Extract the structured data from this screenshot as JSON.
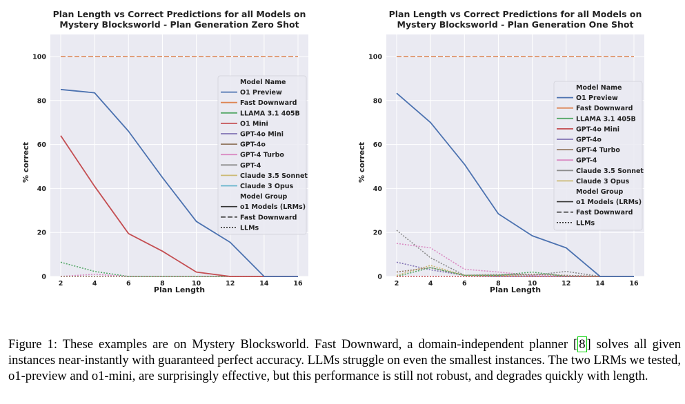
{
  "chart_data": [
    {
      "type": "line",
      "title_lines": [
        "Plan Length vs Correct Predictions for all Models on",
        "Mystery Blocksworld - Plan Generation Zero Shot"
      ],
      "xlabel": "Plan Length",
      "ylabel": "% correct",
      "x_ticks": [
        2,
        4,
        6,
        8,
        10,
        12,
        14,
        16
      ],
      "y_ticks": [
        0,
        20,
        40,
        60,
        80,
        100
      ],
      "xlim": [
        2,
        16
      ],
      "ylim": [
        0,
        105
      ],
      "grid": true,
      "legend_position": "right",
      "legend": {
        "model_header": "Model Name",
        "models": [
          {
            "name": "O1 Preview",
            "color": "#4c72b0"
          },
          {
            "name": "Fast Downward",
            "color": "#dd8452"
          },
          {
            "name": "LLAMA 3.1 405B",
            "color": "#55a868"
          },
          {
            "name": "O1 Mini",
            "color": "#c44e52"
          },
          {
            "name": "GPT-4o Mini",
            "color": "#8172b3"
          },
          {
            "name": "GPT-4o",
            "color": "#937860"
          },
          {
            "name": "GPT-4 Turbo",
            "color": "#da8bc3"
          },
          {
            "name": "GPT-4",
            "color": "#8c8c8c"
          },
          {
            "name": "Claude 3.5 Sonnet",
            "color": "#ccb974"
          },
          {
            "name": "Claude 3 Opus",
            "color": "#64b5cd"
          }
        ],
        "group_header": "Model Group",
        "groups": [
          {
            "name": "o1 Models (LRMs)",
            "dash": "solid"
          },
          {
            "name": "Fast Downward",
            "dash": "dashed"
          },
          {
            "name": "LLMs",
            "dash": "dotted"
          }
        ]
      },
      "series": [
        {
          "model": "Fast Downward",
          "color": "#dd8452",
          "dash": "dashed",
          "x": [
            2,
            16
          ],
          "y": [
            100,
            100
          ]
        },
        {
          "model": "LLAMA 3.1 405B",
          "color": "#55a868",
          "dash": "dotted",
          "x": [
            2,
            4,
            6,
            8,
            10,
            12,
            14,
            16
          ],
          "y": [
            6.5,
            2.3,
            0,
            0,
            0,
            0,
            0,
            0
          ]
        },
        {
          "model": "GPT-4 Turbo",
          "color": "#da8bc3",
          "dash": "dotted",
          "x": [
            2,
            4,
            6,
            8,
            10,
            12,
            14,
            16
          ],
          "y": [
            0,
            1,
            0,
            0,
            0,
            0,
            0,
            0
          ]
        },
        {
          "model": "GPT-4o",
          "color": "#937860",
          "dash": "dotted",
          "x": [
            2,
            4,
            6,
            8,
            10,
            12,
            14,
            16
          ],
          "y": [
            0,
            0,
            0,
            0,
            0,
            0,
            0,
            0
          ]
        },
        {
          "model": "O1 Mini",
          "color": "#c44e52",
          "dash": "solid",
          "x": [
            2,
            4,
            6,
            8,
            10,
            12,
            14,
            16
          ],
          "y": [
            64,
            41,
            19.5,
            11.5,
            2,
            0,
            0,
            0
          ]
        },
        {
          "model": "O1 Preview",
          "color": "#4c72b0",
          "dash": "solid",
          "x": [
            2,
            4,
            6,
            8,
            10,
            12,
            14,
            16
          ],
          "y": [
            85,
            83.5,
            66,
            45,
            25,
            15.5,
            0,
            0
          ]
        }
      ]
    },
    {
      "type": "line",
      "title_lines": [
        "Plan Length vs Correct Predictions for all Models on",
        "Mystery Blocksworld - Plan Generation One Shot"
      ],
      "xlabel": "Plan Length",
      "ylabel": "% correct",
      "x_ticks": [
        2,
        4,
        6,
        8,
        10,
        12,
        14,
        16
      ],
      "y_ticks": [
        0,
        20,
        40,
        60,
        80,
        100
      ],
      "xlim": [
        2,
        16
      ],
      "ylim": [
        0,
        105
      ],
      "grid": true,
      "legend_position": "right",
      "legend": {
        "model_header": "Model Name",
        "models": [
          {
            "name": "O1 Preview",
            "color": "#4c72b0"
          },
          {
            "name": "Fast Downward",
            "color": "#dd8452"
          },
          {
            "name": "LLAMA 3.1 405B",
            "color": "#55a868"
          },
          {
            "name": "GPT-4o Mini",
            "color": "#c44e52"
          },
          {
            "name": "GPT-4o",
            "color": "#8172b3"
          },
          {
            "name": "GPT-4 Turbo",
            "color": "#937860"
          },
          {
            "name": "GPT-4",
            "color": "#da8bc3"
          },
          {
            "name": "Claude 3.5 Sonnet",
            "color": "#8c8c8c"
          },
          {
            "name": "Claude 3 Opus",
            "color": "#ccb974"
          }
        ],
        "group_header": "Model Group",
        "groups": [
          {
            "name": "o1 Models (LRMs)",
            "dash": "solid"
          },
          {
            "name": "Fast Downward",
            "dash": "dashed"
          },
          {
            "name": "LLMs",
            "dash": "dotted"
          }
        ]
      },
      "series": [
        {
          "model": "Fast Downward",
          "color": "#dd8452",
          "dash": "dashed",
          "x": [
            2,
            16
          ],
          "y": [
            100,
            100
          ]
        },
        {
          "model": "Claude 3.5 Sonnet",
          "color": "#8c8c8c",
          "dash": "dotted",
          "x": [
            2,
            4,
            6,
            8,
            10,
            12,
            14,
            16
          ],
          "y": [
            21,
            8.5,
            0.5,
            1,
            0.5,
            2.3,
            0,
            0
          ]
        },
        {
          "model": "GPT-4",
          "color": "#da8bc3",
          "dash": "dotted",
          "x": [
            2,
            4,
            6,
            8,
            10,
            12,
            14,
            16
          ],
          "y": [
            15,
            13,
            3.3,
            2,
            0.5,
            0,
            0,
            0
          ]
        },
        {
          "model": "GPT-4o",
          "color": "#8172b3",
          "dash": "dotted",
          "x": [
            2,
            4,
            6,
            8,
            10,
            12,
            14,
            16
          ],
          "y": [
            6.5,
            3,
            0.5,
            0,
            0,
            0,
            0,
            0
          ]
        },
        {
          "model": "Claude 3 Opus",
          "color": "#ccb974",
          "dash": "dotted",
          "x": [
            2,
            4,
            6,
            8,
            10,
            12,
            14,
            16
          ],
          "y": [
            0.5,
            5,
            0.5,
            0.5,
            0,
            0,
            0,
            0
          ]
        },
        {
          "model": "GPT-4 Turbo",
          "color": "#937860",
          "dash": "dotted",
          "x": [
            2,
            4,
            6,
            8,
            10,
            12,
            14,
            16
          ],
          "y": [
            2,
            4,
            0.5,
            0.5,
            1,
            0.5,
            0,
            0
          ]
        },
        {
          "model": "LLAMA 3.1 405B",
          "color": "#55a868",
          "dash": "dotted",
          "x": [
            2,
            4,
            6,
            8,
            10,
            12,
            14,
            16
          ],
          "y": [
            0,
            4,
            0.5,
            0.5,
            2,
            0,
            0,
            0
          ]
        },
        {
          "model": "GPT-4o Mini",
          "color": "#c44e52",
          "dash": "dotted",
          "x": [
            2,
            4,
            6,
            8,
            10,
            12,
            14,
            16
          ],
          "y": [
            0,
            0,
            0,
            0,
            0,
            0,
            0,
            0
          ]
        },
        {
          "model": "O1 Preview",
          "color": "#4c72b0",
          "dash": "solid",
          "x": [
            2,
            4,
            6,
            8,
            10,
            12,
            14,
            16
          ],
          "y": [
            83.3,
            70,
            51,
            28.5,
            18.5,
            13,
            0,
            0
          ]
        }
      ]
    }
  ],
  "caption": {
    "before_ref": "Figure 1: These examples are on Mystery Blocksworld. Fast Downward, a domain-independent planner [",
    "ref": "8",
    "after_ref": "] solves all given instances near-instantly with guaranteed perfect accuracy. LLMs struggle on even the smallest instances. The two LRMs we tested, o1-preview and o1-mini, are surprisingly effective, but this performance is still not robust, and degrades quickly with length."
  }
}
